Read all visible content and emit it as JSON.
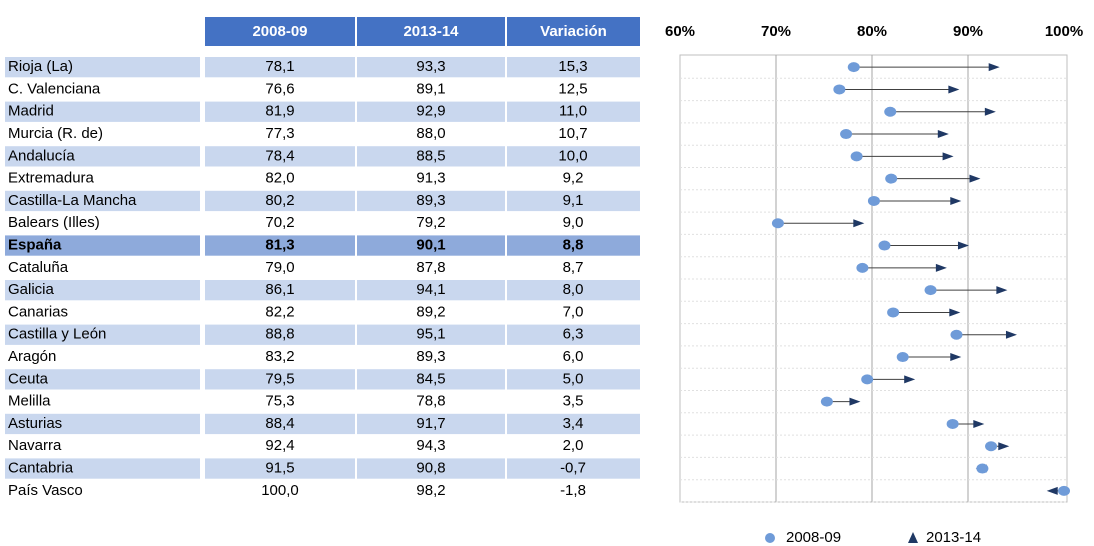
{
  "chart_data": {
    "type": "dumbbell",
    "categories": [
      "Rioja (La)",
      "C. Valenciana",
      "Madrid",
      "Murcia (R. de)",
      "Andalucía",
      "Extremadura",
      "Castilla-La Mancha",
      "Balears (Illes)",
      "España",
      "Cataluña",
      "Galicia",
      "Canarias",
      "Castilla y León",
      "Aragón",
      "Ceuta",
      "Melilla",
      "Asturias",
      "Navarra",
      "Cantabria",
      "País Vasco"
    ],
    "series": [
      {
        "name": "2008-09",
        "color": "#6f9bd8",
        "values": [
          78.1,
          76.6,
          81.9,
          77.3,
          78.4,
          82.0,
          80.2,
          70.2,
          81.3,
          79.0,
          86.1,
          82.2,
          88.8,
          83.2,
          79.5,
          75.3,
          88.4,
          92.4,
          91.5,
          100.0
        ],
        "value_labels": [
          "78,1",
          "76,6",
          "81,9",
          "77,3",
          "78,4",
          "82,0",
          "80,2",
          "70,2",
          "81,3",
          "79,0",
          "86,1",
          "82,2",
          "88,8",
          "83,2",
          "79,5",
          "75,3",
          "88,4",
          "92,4",
          "91,5",
          "100,0"
        ]
      },
      {
        "name": "2013-14",
        "color": "#1f3864",
        "values": [
          93.3,
          89.1,
          92.9,
          88.0,
          88.5,
          91.3,
          89.3,
          79.2,
          90.1,
          87.8,
          94.1,
          89.2,
          95.1,
          89.3,
          84.5,
          78.8,
          91.7,
          94.3,
          90.8,
          98.2
        ],
        "value_labels": [
          "93,3",
          "89,1",
          "92,9",
          "88,0",
          "88,5",
          "91,3",
          "89,3",
          "79,2",
          "90,1",
          "87,8",
          "94,1",
          "89,2",
          "95,1",
          "89,3",
          "84,5",
          "78,8",
          "91,7",
          "94,3",
          "90,8",
          "98,2"
        ]
      }
    ],
    "xlim": [
      60,
      100
    ],
    "xticks": [
      {
        "value": 60,
        "label": "60%"
      },
      {
        "value": 70,
        "label": "70%"
      },
      {
        "value": 80,
        "label": "80%"
      },
      {
        "value": 90,
        "label": "90%"
      },
      {
        "value": 100,
        "label": "100%"
      }
    ],
    "grid": true,
    "legend": "bottom",
    "highlight_index": 8
  },
  "table": {
    "variation_header": "Variación",
    "variation": [
      "15,3",
      "12,5",
      "11,0",
      "10,7",
      "10,0",
      "9,2",
      "9,1",
      "9,0",
      "8,8",
      "8,7",
      "8,0",
      "7,0",
      "6,3",
      "6,0",
      "5,0",
      "3,5",
      "3,4",
      "2,0",
      "-0,7",
      "-1,8"
    ]
  }
}
